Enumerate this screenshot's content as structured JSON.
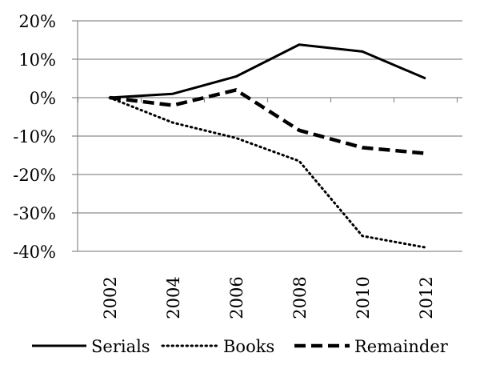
{
  "chart_data": {
    "type": "line",
    "title": "",
    "xlabel": "",
    "ylabel": "",
    "categories": [
      "2002",
      "2004",
      "2006",
      "2008",
      "2010",
      "2012"
    ],
    "y_ticks": [
      "20%",
      "10%",
      "0%",
      "-10%",
      "-20%",
      "-30%",
      "-40%"
    ],
    "y_tick_values": [
      20,
      10,
      0,
      -10,
      -20,
      -30,
      -40
    ],
    "ylim": [
      -40,
      20
    ],
    "grid": true,
    "legend_position": "bottom",
    "series": [
      {
        "name": "Serials",
        "values": [
          0,
          1,
          5.5,
          13.8,
          12,
          5
        ],
        "style": "solid"
      },
      {
        "name": "Books",
        "values": [
          0,
          -6.5,
          -10.5,
          -16.5,
          -36,
          -39
        ],
        "style": "dotted"
      },
      {
        "name": "Remainder",
        "values": [
          0,
          -2,
          2,
          -8.5,
          -13,
          -14.5
        ],
        "style": "dashed"
      }
    ],
    "colors": {
      "line": "#000000",
      "grid": "#8c8c8c",
      "axis": "#8c8c8c"
    }
  }
}
